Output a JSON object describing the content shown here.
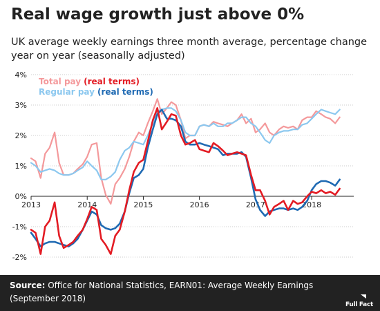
{
  "title": "Real wage growth just above 0%",
  "subtitle": "UK average weekly earnings three month average, percentage change year on year (seasonally adjusted)",
  "footer": {
    "source_label": "Source:",
    "source_text": "Office for National Statistics, EARN01: Average Weekly Earnings (September 2018)",
    "logo_text": "Full Fact"
  },
  "colors": {
    "total_nominal": "#f4999b",
    "total_real": "#e31b23",
    "regular_nominal": "#8cc8ef",
    "regular_real": "#1f6ab3",
    "grid": "#cccccc",
    "axis": "#222222",
    "footer_bg": "#222222"
  },
  "chart_data": {
    "type": "line",
    "ylim": [
      -2,
      4
    ],
    "yticks": [
      {
        "value": 4,
        "label": "4%"
      },
      {
        "value": 3,
        "label": "3%"
      },
      {
        "value": 2,
        "label": "2%"
      },
      {
        "value": 1,
        "label": "1%"
      },
      {
        "value": 0,
        "label": "0%"
      },
      {
        "value": -1,
        "label": "-1%"
      },
      {
        "value": -2,
        "label": "-2%"
      }
    ],
    "xlim": [
      2013.0,
      2018.75
    ],
    "xticks": [
      {
        "value": 2013,
        "label": "2013"
      },
      {
        "value": 2014,
        "label": "2014"
      },
      {
        "value": 2015,
        "label": "2015"
      },
      {
        "value": 2016,
        "label": "2016"
      },
      {
        "value": 2017,
        "label": "2017"
      },
      {
        "value": 2018,
        "label": "2018"
      }
    ],
    "grid": true,
    "legend": {
      "placement": "top-left",
      "entries": [
        {
          "part1": "Total pay",
          "part2": "(real terms)",
          "color1": "#f4999b",
          "color2": "#e31b23"
        },
        {
          "part1": "Regular pay",
          "part2": "(real terms)",
          "color1": "#8cc8ef",
          "color2": "#1f6ab3"
        }
      ]
    },
    "series": [
      {
        "key": "total_nominal",
        "points": [
          [
            2013.0,
            1.25
          ],
          [
            2013.08,
            1.15
          ],
          [
            2013.17,
            0.6
          ],
          [
            2013.25,
            1.4
          ],
          [
            2013.33,
            1.6
          ],
          [
            2013.42,
            2.1
          ],
          [
            2013.5,
            1.1
          ],
          [
            2013.58,
            0.7
          ],
          [
            2013.67,
            0.7
          ],
          [
            2013.75,
            0.75
          ],
          [
            2013.83,
            0.9
          ],
          [
            2013.92,
            1.05
          ],
          [
            2014.0,
            1.3
          ],
          [
            2014.08,
            1.7
          ],
          [
            2014.17,
            1.75
          ],
          [
            2014.25,
            0.6
          ],
          [
            2014.33,
            0.05
          ],
          [
            2014.42,
            -0.25
          ],
          [
            2014.5,
            0.4
          ],
          [
            2014.58,
            0.6
          ],
          [
            2014.67,
            0.9
          ],
          [
            2014.75,
            1.3
          ],
          [
            2014.83,
            1.8
          ],
          [
            2014.92,
            2.1
          ],
          [
            2015.0,
            2.0
          ],
          [
            2015.08,
            2.4
          ],
          [
            2015.17,
            2.8
          ],
          [
            2015.25,
            3.2
          ],
          [
            2015.33,
            2.7
          ],
          [
            2015.42,
            2.9
          ],
          [
            2015.5,
            3.1
          ],
          [
            2015.58,
            3.0
          ],
          [
            2015.67,
            2.5
          ],
          [
            2015.75,
            1.9
          ],
          [
            2015.83,
            2.0
          ],
          [
            2015.92,
            2.0
          ],
          [
            2016.0,
            2.3
          ],
          [
            2016.08,
            2.35
          ],
          [
            2016.17,
            2.3
          ],
          [
            2016.25,
            2.45
          ],
          [
            2016.33,
            2.4
          ],
          [
            2016.42,
            2.35
          ],
          [
            2016.5,
            2.3
          ],
          [
            2016.58,
            2.4
          ],
          [
            2016.67,
            2.5
          ],
          [
            2016.75,
            2.7
          ],
          [
            2016.83,
            2.4
          ],
          [
            2016.92,
            2.55
          ],
          [
            2017.0,
            2.1
          ],
          [
            2017.08,
            2.2
          ],
          [
            2017.17,
            2.4
          ],
          [
            2017.25,
            2.1
          ],
          [
            2017.33,
            2.0
          ],
          [
            2017.42,
            2.2
          ],
          [
            2017.5,
            2.3
          ],
          [
            2017.58,
            2.25
          ],
          [
            2017.67,
            2.3
          ],
          [
            2017.75,
            2.2
          ],
          [
            2017.83,
            2.5
          ],
          [
            2017.92,
            2.6
          ],
          [
            2018.0,
            2.6
          ],
          [
            2018.08,
            2.8
          ],
          [
            2018.17,
            2.7
          ],
          [
            2018.25,
            2.6
          ],
          [
            2018.33,
            2.55
          ],
          [
            2018.42,
            2.4
          ],
          [
            2018.5,
            2.6
          ]
        ]
      },
      {
        "key": "regular_nominal",
        "points": [
          [
            2013.0,
            1.1
          ],
          [
            2013.08,
            1.0
          ],
          [
            2013.17,
            0.8
          ],
          [
            2013.25,
            0.85
          ],
          [
            2013.33,
            0.9
          ],
          [
            2013.42,
            0.85
          ],
          [
            2013.5,
            0.75
          ],
          [
            2013.58,
            0.7
          ],
          [
            2013.67,
            0.7
          ],
          [
            2013.75,
            0.75
          ],
          [
            2013.83,
            0.85
          ],
          [
            2013.92,
            0.95
          ],
          [
            2014.0,
            1.15
          ],
          [
            2014.08,
            1.0
          ],
          [
            2014.17,
            0.85
          ],
          [
            2014.25,
            0.55
          ],
          [
            2014.33,
            0.55
          ],
          [
            2014.42,
            0.65
          ],
          [
            2014.5,
            0.8
          ],
          [
            2014.58,
            1.2
          ],
          [
            2014.67,
            1.5
          ],
          [
            2014.75,
            1.6
          ],
          [
            2014.83,
            1.8
          ],
          [
            2014.92,
            1.75
          ],
          [
            2015.0,
            1.7
          ],
          [
            2015.08,
            2.0
          ],
          [
            2015.17,
            2.4
          ],
          [
            2015.25,
            2.8
          ],
          [
            2015.33,
            2.85
          ],
          [
            2015.42,
            2.9
          ],
          [
            2015.5,
            2.9
          ],
          [
            2015.58,
            2.8
          ],
          [
            2015.67,
            2.5
          ],
          [
            2015.75,
            2.1
          ],
          [
            2015.83,
            2.0
          ],
          [
            2015.92,
            2.0
          ],
          [
            2016.0,
            2.3
          ],
          [
            2016.08,
            2.35
          ],
          [
            2016.17,
            2.3
          ],
          [
            2016.25,
            2.4
          ],
          [
            2016.33,
            2.3
          ],
          [
            2016.42,
            2.3
          ],
          [
            2016.5,
            2.4
          ],
          [
            2016.58,
            2.4
          ],
          [
            2016.67,
            2.5
          ],
          [
            2016.75,
            2.6
          ],
          [
            2016.83,
            2.6
          ],
          [
            2016.92,
            2.4
          ],
          [
            2017.0,
            2.3
          ],
          [
            2017.08,
            2.1
          ],
          [
            2017.17,
            1.85
          ],
          [
            2017.25,
            1.75
          ],
          [
            2017.33,
            2.0
          ],
          [
            2017.42,
            2.1
          ],
          [
            2017.5,
            2.15
          ],
          [
            2017.58,
            2.15
          ],
          [
            2017.67,
            2.2
          ],
          [
            2017.75,
            2.2
          ],
          [
            2017.83,
            2.35
          ],
          [
            2017.92,
            2.4
          ],
          [
            2018.0,
            2.55
          ],
          [
            2018.08,
            2.7
          ],
          [
            2018.17,
            2.85
          ],
          [
            2018.25,
            2.8
          ],
          [
            2018.33,
            2.75
          ],
          [
            2018.42,
            2.7
          ],
          [
            2018.5,
            2.85
          ]
        ]
      },
      {
        "key": "regular_real",
        "points": [
          [
            2013.0,
            -1.2
          ],
          [
            2013.08,
            -1.4
          ],
          [
            2013.17,
            -1.65
          ],
          [
            2013.25,
            -1.55
          ],
          [
            2013.33,
            -1.5
          ],
          [
            2013.42,
            -1.5
          ],
          [
            2013.5,
            -1.55
          ],
          [
            2013.58,
            -1.6
          ],
          [
            2013.67,
            -1.65
          ],
          [
            2013.75,
            -1.55
          ],
          [
            2013.83,
            -1.4
          ],
          [
            2013.92,
            -1.1
          ],
          [
            2014.0,
            -0.8
          ],
          [
            2014.08,
            -0.5
          ],
          [
            2014.17,
            -0.6
          ],
          [
            2014.25,
            -0.95
          ],
          [
            2014.33,
            -1.05
          ],
          [
            2014.42,
            -1.1
          ],
          [
            2014.5,
            -1.05
          ],
          [
            2014.58,
            -0.9
          ],
          [
            2014.67,
            -0.5
          ],
          [
            2014.75,
            0.1
          ],
          [
            2014.83,
            0.6
          ],
          [
            2014.92,
            0.7
          ],
          [
            2015.0,
            0.9
          ],
          [
            2015.08,
            1.6
          ],
          [
            2015.17,
            2.2
          ],
          [
            2015.25,
            2.7
          ],
          [
            2015.33,
            2.85
          ],
          [
            2015.42,
            2.55
          ],
          [
            2015.5,
            2.55
          ],
          [
            2015.58,
            2.5
          ],
          [
            2015.67,
            2.3
          ],
          [
            2015.75,
            1.8
          ],
          [
            2015.83,
            1.7
          ],
          [
            2015.92,
            1.7
          ],
          [
            2016.0,
            1.75
          ],
          [
            2016.08,
            1.7
          ],
          [
            2016.17,
            1.65
          ],
          [
            2016.25,
            1.6
          ],
          [
            2016.33,
            1.55
          ],
          [
            2016.42,
            1.35
          ],
          [
            2016.5,
            1.4
          ],
          [
            2016.58,
            1.4
          ],
          [
            2016.67,
            1.4
          ],
          [
            2016.75,
            1.45
          ],
          [
            2016.83,
            1.3
          ],
          [
            2016.92,
            0.6
          ],
          [
            2017.0,
            -0.1
          ],
          [
            2017.08,
            -0.45
          ],
          [
            2017.17,
            -0.65
          ],
          [
            2017.25,
            -0.5
          ],
          [
            2017.33,
            -0.45
          ],
          [
            2017.42,
            -0.4
          ],
          [
            2017.5,
            -0.4
          ],
          [
            2017.58,
            -0.45
          ],
          [
            2017.67,
            -0.4
          ],
          [
            2017.75,
            -0.45
          ],
          [
            2017.83,
            -0.35
          ],
          [
            2017.92,
            -0.15
          ],
          [
            2018.0,
            0.2
          ],
          [
            2018.08,
            0.4
          ],
          [
            2018.17,
            0.5
          ],
          [
            2018.25,
            0.5
          ],
          [
            2018.33,
            0.45
          ],
          [
            2018.42,
            0.35
          ],
          [
            2018.5,
            0.55
          ]
        ]
      },
      {
        "key": "total_real",
        "points": [
          [
            2013.0,
            -1.1
          ],
          [
            2013.08,
            -1.2
          ],
          [
            2013.17,
            -1.9
          ],
          [
            2013.25,
            -1.0
          ],
          [
            2013.33,
            -0.8
          ],
          [
            2013.42,
            -0.2
          ],
          [
            2013.5,
            -1.3
          ],
          [
            2013.58,
            -1.7
          ],
          [
            2013.67,
            -1.6
          ],
          [
            2013.75,
            -1.5
          ],
          [
            2013.83,
            -1.3
          ],
          [
            2013.92,
            -1.1
          ],
          [
            2014.0,
            -0.75
          ],
          [
            2014.08,
            -0.35
          ],
          [
            2014.17,
            -0.45
          ],
          [
            2014.25,
            -1.4
          ],
          [
            2014.33,
            -1.6
          ],
          [
            2014.42,
            -1.9
          ],
          [
            2014.5,
            -1.3
          ],
          [
            2014.58,
            -1.1
          ],
          [
            2014.67,
            -0.5
          ],
          [
            2014.75,
            0.2
          ],
          [
            2014.83,
            0.8
          ],
          [
            2014.92,
            1.1
          ],
          [
            2015.0,
            1.2
          ],
          [
            2015.08,
            1.8
          ],
          [
            2015.17,
            2.5
          ],
          [
            2015.25,
            2.9
          ],
          [
            2015.33,
            2.2
          ],
          [
            2015.42,
            2.45
          ],
          [
            2015.5,
            2.7
          ],
          [
            2015.58,
            2.65
          ],
          [
            2015.67,
            2.0
          ],
          [
            2015.75,
            1.7
          ],
          [
            2015.83,
            1.75
          ],
          [
            2015.92,
            1.85
          ],
          [
            2016.0,
            1.55
          ],
          [
            2016.08,
            1.5
          ],
          [
            2016.17,
            1.45
          ],
          [
            2016.25,
            1.75
          ],
          [
            2016.33,
            1.65
          ],
          [
            2016.42,
            1.5
          ],
          [
            2016.5,
            1.35
          ],
          [
            2016.58,
            1.4
          ],
          [
            2016.67,
            1.45
          ],
          [
            2016.75,
            1.4
          ],
          [
            2016.83,
            1.35
          ],
          [
            2016.92,
            0.7
          ],
          [
            2017.0,
            0.2
          ],
          [
            2017.08,
            0.2
          ],
          [
            2017.17,
            -0.15
          ],
          [
            2017.25,
            -0.6
          ],
          [
            2017.33,
            -0.35
          ],
          [
            2017.42,
            -0.25
          ],
          [
            2017.5,
            -0.15
          ],
          [
            2017.58,
            -0.45
          ],
          [
            2017.67,
            -0.15
          ],
          [
            2017.75,
            -0.25
          ],
          [
            2017.83,
            -0.2
          ],
          [
            2017.92,
            0.0
          ],
          [
            2018.0,
            0.15
          ],
          [
            2018.08,
            0.1
          ],
          [
            2018.17,
            0.2
          ],
          [
            2018.25,
            0.1
          ],
          [
            2018.33,
            0.15
          ],
          [
            2018.42,
            0.05
          ],
          [
            2018.5,
            0.25
          ]
        ]
      }
    ]
  }
}
